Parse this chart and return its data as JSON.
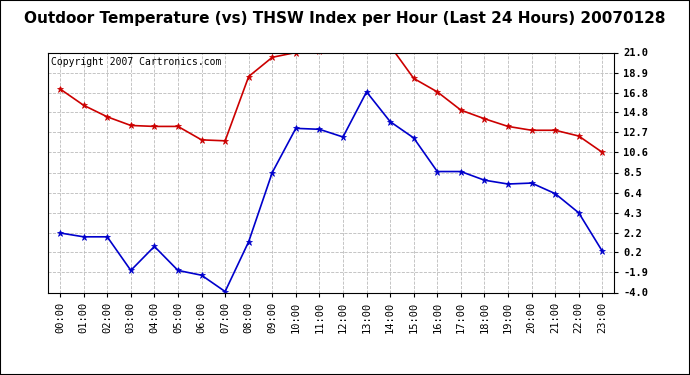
{
  "title": "Outdoor Temperature (vs) THSW Index per Hour (Last 24 Hours) 20070128",
  "copyright": "Copyright 2007 Cartronics.com",
  "x_labels": [
    "00:00",
    "01:00",
    "02:00",
    "03:00",
    "04:00",
    "05:00",
    "06:00",
    "07:00",
    "08:00",
    "09:00",
    "10:00",
    "11:00",
    "12:00",
    "13:00",
    "14:00",
    "15:00",
    "16:00",
    "17:00",
    "18:00",
    "19:00",
    "20:00",
    "21:00",
    "22:00",
    "23:00"
  ],
  "red_data": [
    17.2,
    15.5,
    14.3,
    13.4,
    13.3,
    13.3,
    11.9,
    11.8,
    18.5,
    20.5,
    21.0,
    21.2,
    21.6,
    21.7,
    21.7,
    18.3,
    16.9,
    15.0,
    14.1,
    13.3,
    12.9,
    12.9,
    12.3,
    10.6
  ],
  "blue_data": [
    2.2,
    1.8,
    1.8,
    -1.7,
    0.8,
    -1.7,
    -2.2,
    -3.9,
    1.3,
    8.5,
    13.1,
    13.0,
    12.2,
    16.9,
    13.8,
    12.1,
    8.6,
    8.6,
    7.7,
    7.3,
    7.4,
    6.3,
    4.3,
    0.3
  ],
  "ylim": [
    -4.0,
    21.0
  ],
  "yticks": [
    21.0,
    18.9,
    16.8,
    14.8,
    12.7,
    10.6,
    8.5,
    6.4,
    4.3,
    2.2,
    0.2,
    -1.9,
    -4.0
  ],
  "red_color": "#cc0000",
  "blue_color": "#0000cc",
  "bg_color": "#ffffff",
  "plot_bg_color": "#ffffff",
  "grid_color": "#bbbbbb",
  "title_fontsize": 11,
  "copyright_fontsize": 7,
  "tick_fontsize": 7.5
}
